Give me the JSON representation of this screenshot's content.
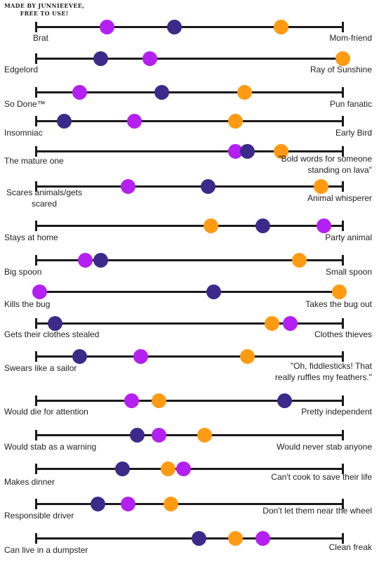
{
  "credit": {
    "line1": "MADE BY JUNNIEEVEE,",
    "line2": "FREE TO USE!"
  },
  "colors": {
    "purple": "#b41ff2",
    "navy": "#3b2a8a",
    "orange": "#ff9b13",
    "line": "#1a1a1a"
  },
  "legend_note": "",
  "rows": [
    {
      "left": [
        "Brat"
      ],
      "right": [
        "Mom-friend"
      ],
      "dots": {
        "purple": 0.23,
        "navy": 0.45,
        "orange": 0.8
      }
    },
    {
      "left": [
        "Edgelord"
      ],
      "right": [
        "Ray of Sunshine"
      ],
      "dots": {
        "navy": 0.21,
        "purple": 0.37,
        "orange": 1.0
      }
    },
    {
      "left": [
        "So Done™"
      ],
      "right": [
        "Pun fanatic"
      ],
      "dots": {
        "purple": 0.14,
        "navy": 0.41,
        "orange": 0.68
      }
    },
    {
      "left": [
        "Insomniac"
      ],
      "right": [
        "Early Bird"
      ],
      "dots": {
        "navy": 0.09,
        "purple": 0.32,
        "orange": 0.65
      }
    },
    {
      "left": [
        "The mature one"
      ],
      "right": [
        "\"Bold words for someone",
        "standing on lava\""
      ],
      "dots": {
        "purple": 0.65,
        "navy": 0.69,
        "orange": 0.8
      }
    },
    {
      "left": [
        "Scares animals/gets",
        "scared"
      ],
      "right": [
        "Animal whisperer"
      ],
      "dots": {
        "purple": 0.3,
        "navy": 0.56,
        "orange": 0.93
      }
    },
    {
      "left": [
        "Stays at home"
      ],
      "right": [
        "Party animal"
      ],
      "dots": {
        "orange": 0.57,
        "navy": 0.74,
        "purple": 0.94
      }
    },
    {
      "left": [
        "Big spoon"
      ],
      "right": [
        "Small spoon"
      ],
      "dots": {
        "purple": 0.16,
        "navy": 0.21,
        "orange": 0.86
      }
    },
    {
      "left": [
        "Kills the bug"
      ],
      "right": [
        "Takes the bug out"
      ],
      "dots": {
        "purple": 0.01,
        "navy": 0.58,
        "orange": 0.99
      }
    },
    {
      "left": [
        "Gets their clothes stealed"
      ],
      "right": [
        "Clothes thieves"
      ],
      "dots": {
        "navy": 0.06,
        "orange": 0.77,
        "purple": 0.83
      }
    },
    {
      "left": [
        "Swears like a sailor"
      ],
      "right": [
        "\"Oh, fiddlesticks! That",
        "really ruffles my feathers.\""
      ],
      "dots": {
        "navy": 0.14,
        "purple": 0.34,
        "orange": 0.69
      }
    },
    {
      "left": [
        "Would die for attention"
      ],
      "right": [
        "Pretty independent"
      ],
      "dots": {
        "purple": 0.31,
        "orange": 0.4,
        "navy": 0.81
      }
    },
    {
      "left": [
        "Would stab as a warning"
      ],
      "right": [
        "Would never stab anyone"
      ],
      "dots": {
        "navy": 0.33,
        "purple": 0.4,
        "orange": 0.55
      }
    },
    {
      "left": [
        "Makes dinner"
      ],
      "right": [
        "Can't cook to save their life"
      ],
      "dots": {
        "navy": 0.28,
        "orange": 0.43,
        "purple": 0.48
      }
    },
    {
      "left": [
        "Responsible driver"
      ],
      "right": [
        "Don't let them near the wheel"
      ],
      "dots": {
        "navy": 0.2,
        "purple": 0.3,
        "orange": 0.44
      }
    },
    {
      "left": [
        "Can live in a dumpster"
      ],
      "right": [
        "Clean freak"
      ],
      "dots": {
        "navy": 0.53,
        "orange": 0.65,
        "purple": 0.74
      }
    }
  ]
}
